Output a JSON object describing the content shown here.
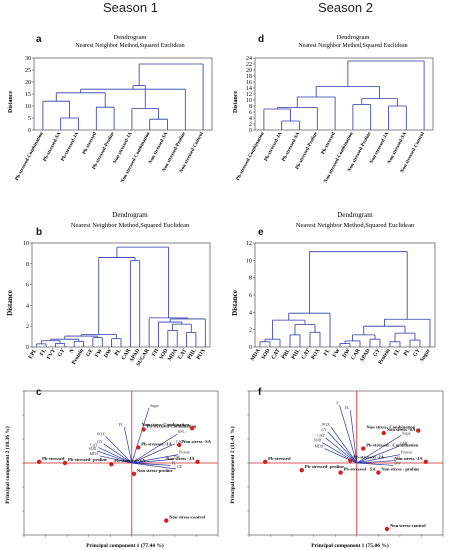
{
  "headers": {
    "season1": "Season 1",
    "season2": "Season 2"
  },
  "panels": {
    "a": {
      "label": "a",
      "title": "Dendrogram",
      "subtitle": "Nearest Neighbor Method,Squared Euclidean",
      "ylabel": "Distance"
    },
    "d": {
      "label": "d",
      "title": "Dendrogram",
      "subtitle": "Nearest Neighbor Method,Squared Euclidean",
      "ylabel": "Distance"
    },
    "b": {
      "label": "b",
      "title": "Dendrogram",
      "subtitle": "Nearest Neighbor Method,Squared Euclidean",
      "ylabel": "Distance"
    },
    "e": {
      "label": "e",
      "title": "Dendrogram",
      "subtitle": "Nearest Neighbor Method,Squared Euclidean",
      "ylabel": "Distance"
    },
    "c": {
      "label": "c",
      "xlabel": "Principal component 1 (77.44 %)",
      "ylabel": "Principal component 2 (10.36 %)"
    },
    "f": {
      "label": "f",
      "xlabel": "Principal component 1 (75.06 %)",
      "ylabel": "Principal component 2 (11.41 %)"
    }
  },
  "chart_data": [
    {
      "panel": "a",
      "type": "dendrogram",
      "ylim": [
        0,
        30
      ],
      "yticks": [
        0,
        5,
        10,
        15,
        20,
        25,
        30
      ],
      "leaves": [
        "Pb-stressed-Combination",
        "Pb-stressed-SA",
        "Pb-stressed-JA",
        "Pb-stressed",
        "Pb-stressed-Proline",
        "Non stressed-JA",
        "Non stressed-Combination",
        "Non stressed-SA",
        "Non stressed-Proline",
        "Non stressed-Control"
      ],
      "merges": [
        [
          1,
          2,
          5
        ],
        [
          6,
          7,
          4.5
        ],
        [
          0,
          -1,
          12
        ],
        [
          3,
          4,
          9.5
        ],
        [
          5,
          -2,
          9
        ],
        [
          -3,
          -4,
          15.5
        ],
        [
          -6,
          8,
          17
        ],
        [
          -5,
          -7,
          18.5
        ],
        [
          -8,
          9,
          27.5
        ]
      ]
    },
    {
      "panel": "d",
      "type": "dendrogram",
      "ylim": [
        0,
        24
      ],
      "yticks": [
        0,
        2,
        4,
        6,
        8,
        10,
        12,
        14,
        16,
        18,
        20,
        22,
        24
      ],
      "leaves": [
        "Pb-stressed-Combination",
        "Pb-stressed-JA",
        "Pb-stressed-SA",
        "Pb-stressed-Proline",
        "Pb-stressed",
        "Non stressed-Combination",
        "Non stressed-Proline",
        "Non stressed-JA",
        "Non stressed-SA",
        "Non stressed-Control"
      ],
      "merges": [
        [
          1,
          2,
          3
        ],
        [
          0,
          -1,
          7
        ],
        [
          -2,
          3,
          7.5
        ],
        [
          -3,
          4,
          11
        ],
        [
          7,
          8,
          8
        ],
        [
          5,
          6,
          8.5
        ],
        [
          -6,
          -5,
          10.5
        ],
        [
          -4,
          -7,
          14.5
        ],
        [
          -8,
          9,
          23
        ]
      ]
    },
    {
      "panel": "b",
      "type": "dendrogram",
      "ylim": [
        0,
        10
      ],
      "yticks": [
        0,
        2,
        4,
        6,
        8,
        10
      ],
      "leaves": [
        "EPL",
        "FL",
        "FVY",
        "GY",
        "N",
        "Protein",
        "GE",
        "FW",
        "DW",
        "PL",
        "CAR",
        "SPAD",
        "SUGAR",
        "FH",
        "SOD",
        "MDA",
        "CAT",
        "PHL",
        "POX"
      ],
      "merges": [
        [
          0,
          1,
          0.3
        ],
        [
          2,
          3,
          0.35
        ],
        [
          -1,
          -2,
          0.6
        ],
        [
          4,
          5,
          0.55
        ],
        [
          -3,
          -4,
          0.75
        ],
        [
          6,
          7,
          0.9
        ],
        [
          -5,
          -6,
          1.05
        ],
        [
          8,
          9,
          0.8
        ],
        [
          -7,
          -8,
          1.2
        ],
        [
          10,
          11,
          8.3
        ],
        [
          -9,
          -10,
          8.6
        ],
        [
          14,
          15,
          1.6
        ],
        [
          16,
          17,
          1.4
        ],
        [
          -12,
          -13,
          2.2
        ],
        [
          13,
          -14,
          2.4
        ],
        [
          18,
          -15,
          2.7
        ],
        [
          12,
          -16,
          2.8
        ],
        [
          -11,
          -17,
          9.6
        ]
      ]
    },
    {
      "panel": "e",
      "type": "dendrogram",
      "ylim": [
        0,
        12
      ],
      "yticks": [
        0,
        2,
        4,
        6,
        8,
        10,
        12
      ],
      "leaves": [
        "MDA",
        "SOD",
        "CAT",
        "PRL",
        "PHL",
        "CAT",
        "POX",
        "FL",
        "FW",
        "DW",
        "CAR",
        "SPAD",
        "GY",
        "Protein",
        "FL",
        "PL",
        "GY",
        "Sugar"
      ],
      "merges": [
        [
          0,
          1,
          0.6
        ],
        [
          -1,
          2,
          0.9
        ],
        [
          3,
          4,
          1.4
        ],
        [
          5,
          6,
          1.7
        ],
        [
          -3,
          -4,
          2.6
        ],
        [
          -2,
          -5,
          3.1
        ],
        [
          -6,
          7,
          3.9
        ],
        [
          8,
          9,
          0.4
        ],
        [
          -8,
          10,
          0.7
        ],
        [
          11,
          12,
          0.9
        ],
        [
          -9,
          -10,
          1.4
        ],
        [
          13,
          14,
          0.6
        ],
        [
          15,
          16,
          0.8
        ],
        [
          -12,
          -13,
          1.6
        ],
        [
          -11,
          -14,
          2.4
        ],
        [
          -15,
          17,
          3.2
        ],
        [
          -7,
          -16,
          11
        ]
      ]
    },
    {
      "panel": "c",
      "type": "biplot",
      "xlim": [
        -10,
        8
      ],
      "ylim": [
        -6,
        6
      ],
      "points": [
        {
          "label": "Pb-stressed",
          "x": -8.6,
          "y": 0.1
        },
        {
          "label": "Pb-stressed- proline",
          "x": -6.2,
          "y": 0.0
        },
        {
          "label": "Pb-stressed -SA",
          "x": -1.9,
          "y": -0.1
        },
        {
          "label": "Pb-stressed -JA",
          "x": 0.6,
          "y": 1.3
        },
        {
          "label": "Pb-stressed-Combination",
          "x": 1.1,
          "y": 2.8
        },
        {
          "label": "Non stress-proline",
          "x": 0.2,
          "y": -0.9
        },
        {
          "label": "Non stress -SA",
          "x": 4.4,
          "y": 1.5
        },
        {
          "label": "Non stress-Combination",
          "x": 5.6,
          "y": 2.9
        },
        {
          "label": "Non stress -JA",
          "x": 6.1,
          "y": 0.1
        },
        {
          "label": "Non stress-control",
          "x": 3.2,
          "y": -4.8
        }
      ],
      "loadings": [
        {
          "label": "Sugar",
          "x": 1.6,
          "y": 4.6
        },
        {
          "label": "FL",
          "x": -0.7,
          "y": 3.0
        },
        {
          "label": "POX",
          "x": -2.4,
          "y": 2.2
        },
        {
          "label": "GY",
          "x": -2.6,
          "y": 1.6
        },
        {
          "label": "CAT",
          "x": -3.1,
          "y": 1.3
        },
        {
          "label": "SOD",
          "x": -3.2,
          "y": 1.0
        },
        {
          "label": "MDA",
          "x": -3.0,
          "y": 0.6
        },
        {
          "label": "EPL",
          "x": 4.2,
          "y": 2.4
        },
        {
          "label": "CAR",
          "x": 4.0,
          "y": 1.6
        },
        {
          "label": "Protein",
          "x": 4.3,
          "y": 0.7
        },
        {
          "label": "DW",
          "x": 3.8,
          "y": 0.3
        },
        {
          "label": "PL",
          "x": 3.6,
          "y": -0.2
        },
        {
          "label": "GE",
          "x": 4.1,
          "y": -0.5
        }
      ]
    },
    {
      "panel": "f",
      "type": "biplot",
      "xlim": [
        -10,
        8
      ],
      "ylim": [
        -6,
        6
      ],
      "points": [
        {
          "label": "Pb-stressed",
          "x": -8.5,
          "y": 0.1
        },
        {
          "label": "Pb-stressed- proline",
          "x": -5.1,
          "y": -0.6
        },
        {
          "label": "Pb-stressed - SA",
          "x": -1.5,
          "y": -0.8
        },
        {
          "label": "Pb-stressed -JA",
          "x": -0.6,
          "y": 0.2
        },
        {
          "label": "Pb-stressed - Combination",
          "x": 0.6,
          "y": 1.2
        },
        {
          "label": "Non stress - proline",
          "x": 2.0,
          "y": -0.8
        },
        {
          "label": "Non stress -SA",
          "x": 2.5,
          "y": 2.5
        },
        {
          "label": "Non stress- Combination",
          "x": 5.7,
          "y": 2.7
        },
        {
          "label": "Non stress -JA",
          "x": 6.4,
          "y": 0.1
        },
        {
          "label": "Non stress-control",
          "x": 2.8,
          "y": -5.5
        }
      ],
      "loadings": [
        {
          "label": "P",
          "x": -1.6,
          "y": 4.8
        },
        {
          "label": "FL",
          "x": -0.6,
          "y": 4.4
        },
        {
          "label": "POX",
          "x": -2.4,
          "y": 3.0
        },
        {
          "label": "CAT",
          "x": -2.9,
          "y": 2.1
        },
        {
          "label": "SOD",
          "x": -3.2,
          "y": 1.7
        },
        {
          "label": "MDA",
          "x": -3.0,
          "y": 1.2
        },
        {
          "label": "GY",
          "x": -2.7,
          "y": 2.6
        },
        {
          "label": "Sugar",
          "x": 4.1,
          "y": 2.3
        },
        {
          "label": "CAR",
          "x": 3.9,
          "y": 1.4
        },
        {
          "label": "Protein",
          "x": 4.0,
          "y": 0.7
        },
        {
          "label": "FL",
          "x": 3.6,
          "y": 0.2
        },
        {
          "label": "DW",
          "x": 3.4,
          "y": -0.2
        }
      ]
    }
  ]
}
